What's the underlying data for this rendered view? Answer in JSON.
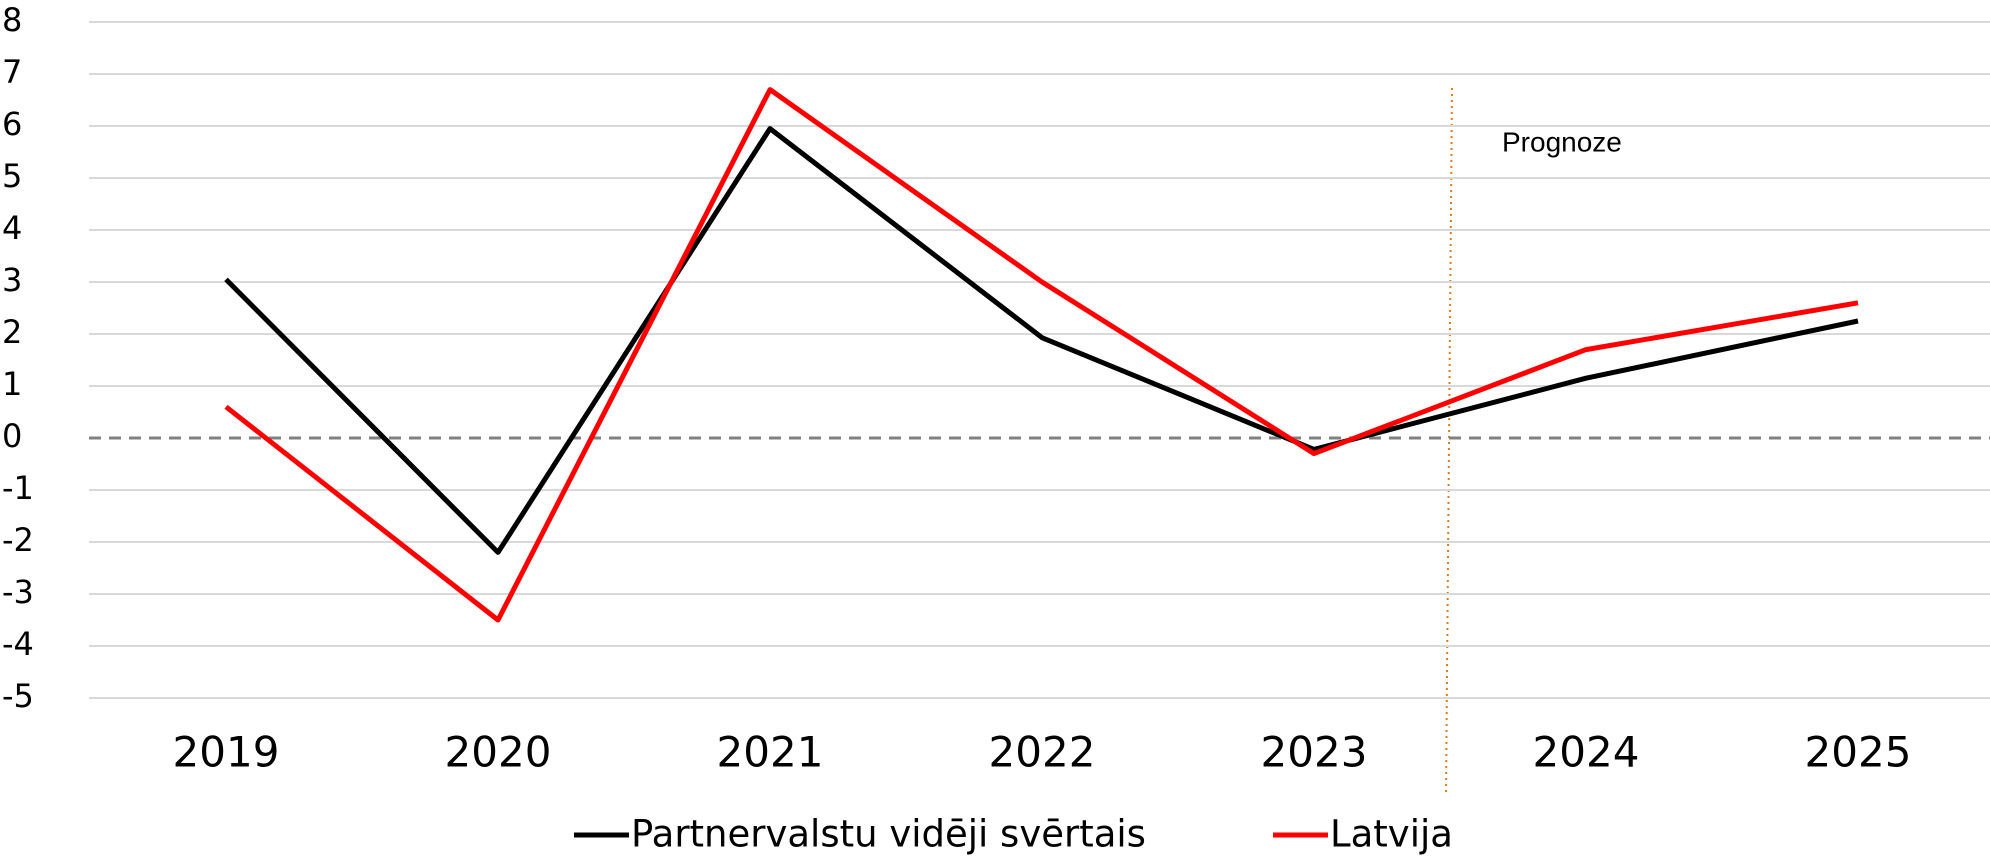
{
  "chart_data": {
    "type": "line",
    "categories": [
      "2019",
      "2020",
      "2021",
      "2022",
      "2023",
      "2024",
      "2025"
    ],
    "series": [
      {
        "name": "Partnervalstu vidēji svērtais",
        "color": "#000000",
        "values": [
          3.05,
          -2.2,
          5.95,
          1.93,
          -0.22,
          1.15,
          2.25
        ]
      },
      {
        "name": "Latvija",
        "color": "#ff0000",
        "values": [
          0.6,
          -3.5,
          6.7,
          3.0,
          -0.3,
          1.7,
          2.6
        ]
      }
    ],
    "ylim": [
      -5,
      8
    ],
    "yticks": [
      -5,
      -4,
      -3,
      -2,
      -1,
      0,
      1,
      2,
      3,
      4,
      5,
      6,
      7,
      8
    ],
    "grid": true,
    "legend": "bottom",
    "annotation": "Prognoze"
  }
}
